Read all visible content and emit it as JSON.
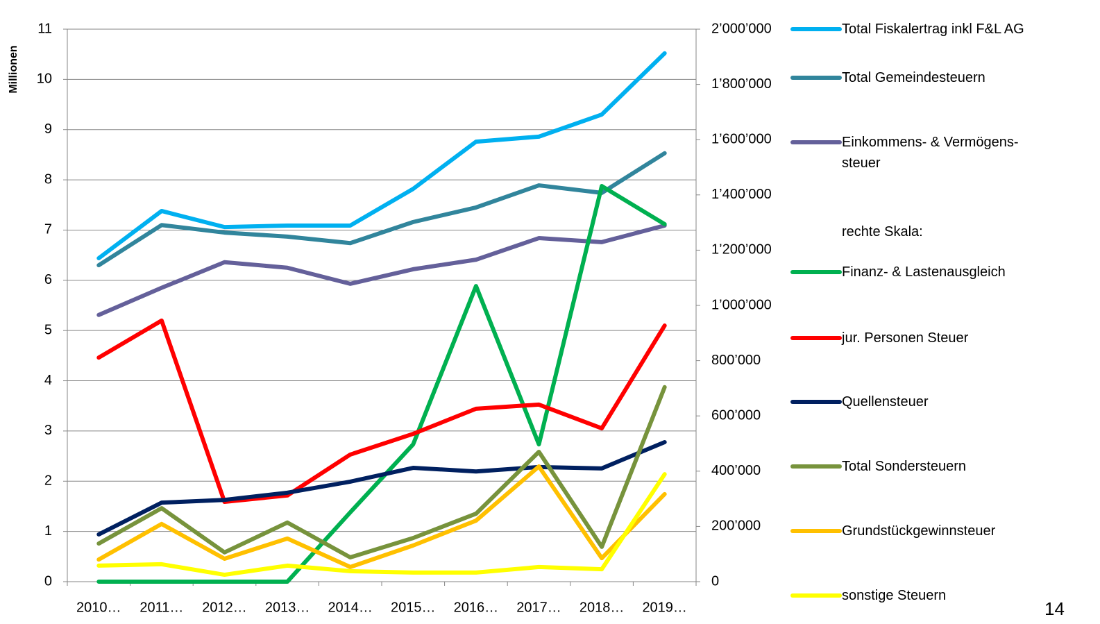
{
  "chart_data": {
    "type": "line",
    "ylabel": "Millionen",
    "categories": [
      "2010…",
      "2011…",
      "2012…",
      "2013…",
      "2014…",
      "2015…",
      "2016…",
      "2017…",
      "2018…",
      "2019…"
    ],
    "ylim": [
      0,
      11
    ],
    "yticks": [
      0,
      1,
      2,
      3,
      4,
      5,
      6,
      7,
      8,
      9,
      10,
      11
    ],
    "y2lim": [
      0,
      2000000
    ],
    "y2ticks": [
      0,
      {
        "value": 200000,
        "label": "200’000"
      },
      {
        "value": 400000,
        "label": "400’000"
      },
      {
        "value": 600000,
        "label": "600’000"
      },
      {
        "value": 800000,
        "label": "800’000"
      },
      {
        "value": 1000000,
        "label": "1’000’000"
      },
      {
        "value": 1200000,
        "label": "1’200’000"
      },
      {
        "value": 1400000,
        "label": "1’400’000"
      },
      {
        "value": 1600000,
        "label": "1’600’000"
      },
      {
        "value": 1800000,
        "label": "1’800’000"
      },
      {
        "value": 2000000,
        "label": "2’000’000"
      }
    ],
    "grid": true,
    "legend_note": "rechte Skala:",
    "series": [
      {
        "name": "Total Fiskalertrag inkl F&L AG",
        "color": "#00b0f0",
        "values": [
          6.44,
          7.38,
          7.06,
          7.09,
          7.09,
          7.82,
          8.76,
          8.86,
          9.3,
          10.52
        ]
      },
      {
        "name": "Total Gemeindesteuern",
        "color": "#31859c",
        "values": [
          6.3,
          7.1,
          6.95,
          6.87,
          6.74,
          7.16,
          7.45,
          7.89,
          7.74,
          8.53
        ]
      },
      {
        "name": "Einkommens- & Vermögens-steuer",
        "color": "#64609a",
        "values": [
          5.31,
          5.85,
          6.36,
          6.25,
          5.93,
          6.22,
          6.41,
          6.84,
          6.76,
          7.09
        ]
      },
      {
        "name": "Finanz- & Lastenausgleich",
        "color": "#00b050",
        "axis": "y2",
        "values": [
          0,
          0,
          0,
          0,
          251000,
          497000,
          1070000,
          497000,
          1432000,
          1294000
        ]
      },
      {
        "name": "jur. Personen Steuer",
        "color": "#ff0000",
        "axis": "y2",
        "values": [
          811000,
          945000,
          289000,
          312000,
          460000,
          535000,
          626000,
          641000,
          555000,
          927000
        ]
      },
      {
        "name": "Quellensteuer",
        "color": "#002060",
        "axis": "y2",
        "values": [
          171000,
          286000,
          296000,
          322000,
          362000,
          412000,
          399000,
          415000,
          410000,
          505000
        ]
      },
      {
        "name": "Total Sondersteuern",
        "color": "#77933c",
        "axis": "y2",
        "values": [
          138000,
          266000,
          106000,
          214000,
          88000,
          158000,
          246000,
          470000,
          126000,
          704000
        ]
      },
      {
        "name": "Grundstückgewinnsteuer",
        "color": "#ffc000",
        "axis": "y2",
        "values": [
          80000,
          209000,
          83000,
          156000,
          53000,
          131000,
          221000,
          417000,
          85000,
          317000
        ]
      },
      {
        "name": "sonstige Steuern",
        "color": "#ffff00",
        "axis": "y2",
        "values": [
          58000,
          63000,
          25000,
          58000,
          38000,
          33000,
          33000,
          53000,
          45000,
          389000
        ]
      }
    ]
  },
  "page_number": "14"
}
